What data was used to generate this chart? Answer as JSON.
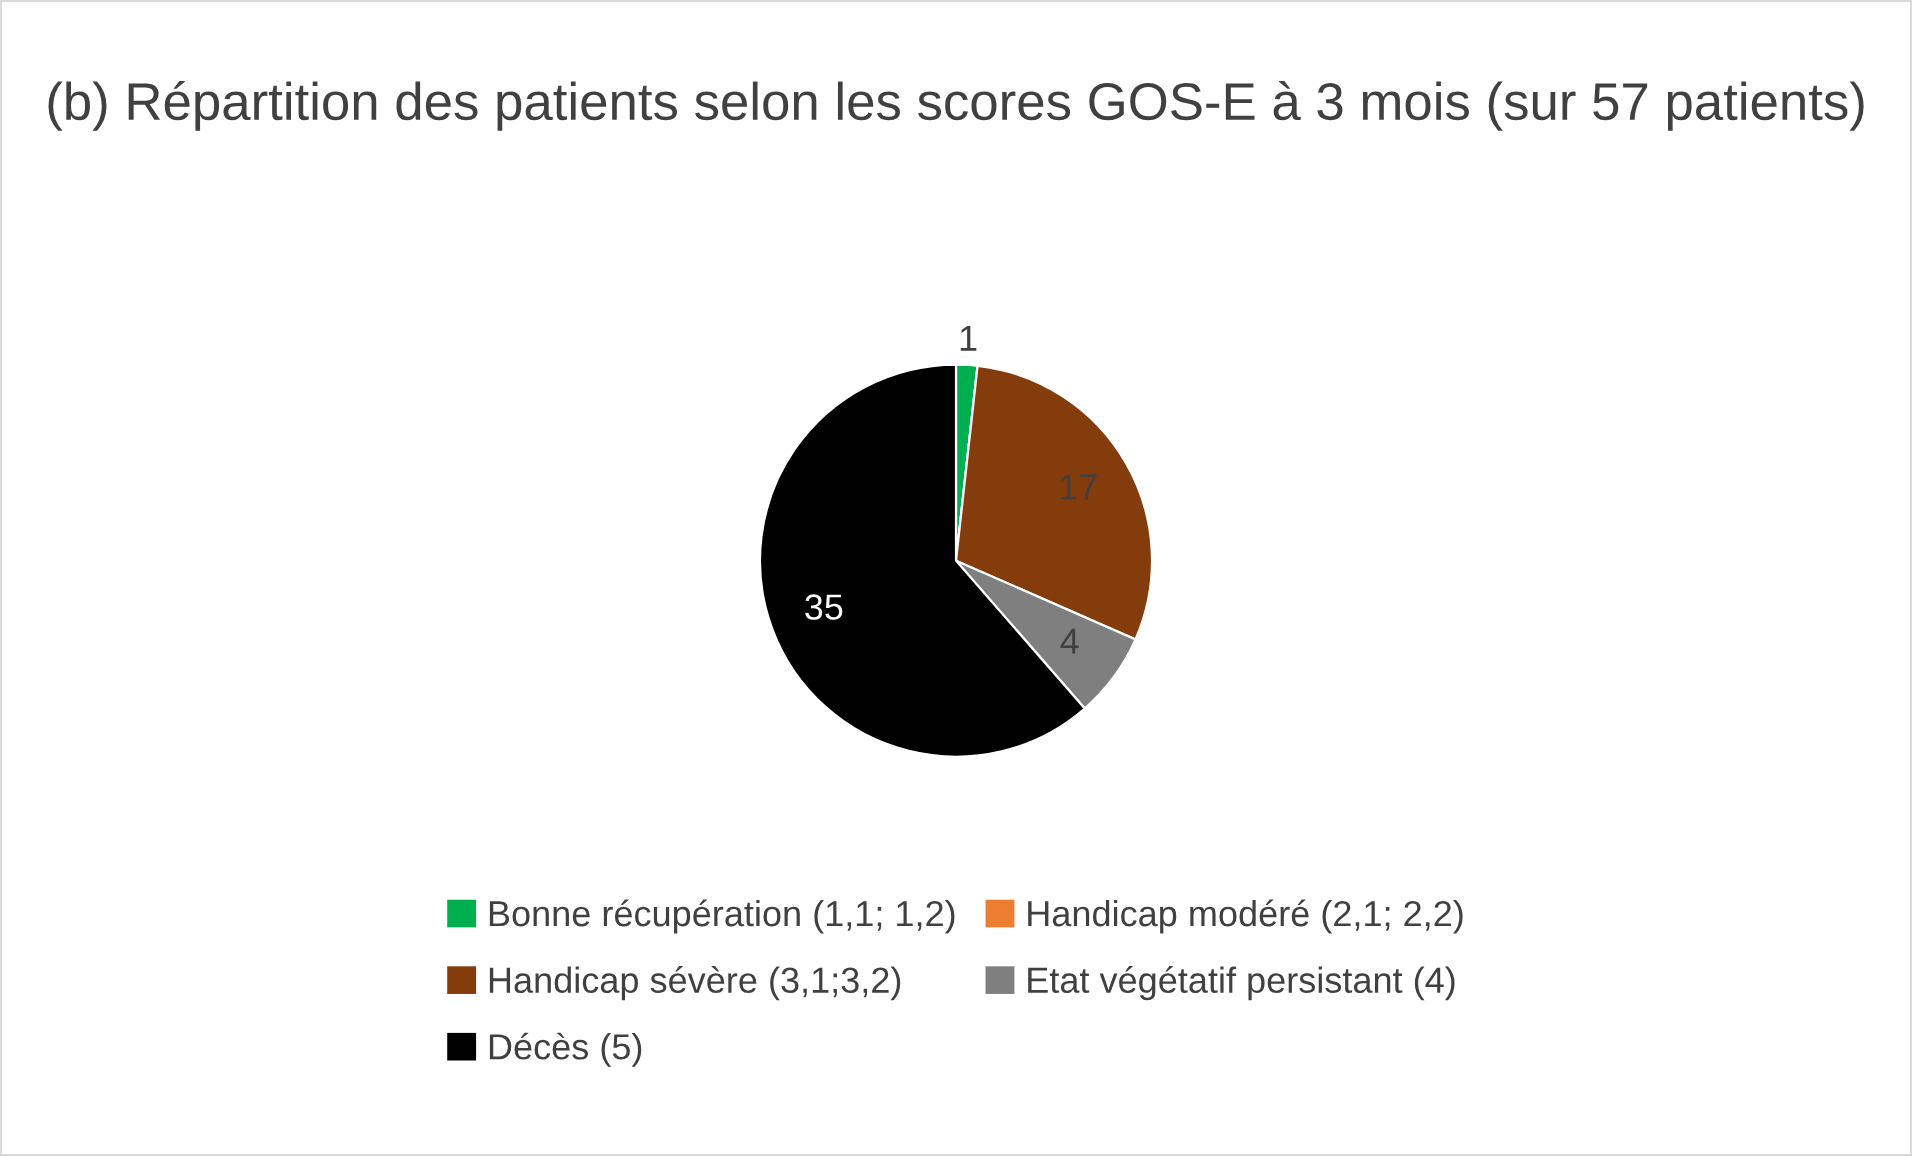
{
  "chart_data": {
    "type": "pie",
    "title": "(b) Répartition des patients selon les scores GOS-E à 3 mois (sur 57 patients)",
    "categories": [
      "Bonne récupération (1,1; 1,2)",
      "Handicap modéré (2,1; 2,2)",
      "Handicap sévère (3,1;3,2)",
      "Etat végétatif persistant (4)",
      "Décès (5)"
    ],
    "values": [
      1,
      0,
      17,
      4,
      35
    ],
    "colors": [
      "#00b050",
      "#ed7d31",
      "#843c0c",
      "#7f7f7f",
      "#000000"
    ],
    "value_labels": [
      "1",
      null,
      "17",
      "4",
      "35"
    ],
    "legend": "bottom"
  }
}
